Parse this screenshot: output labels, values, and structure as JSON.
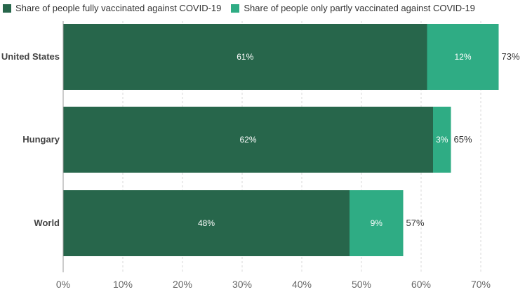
{
  "chart_data": {
    "type": "bar",
    "orientation": "horizontal",
    "stacked": true,
    "categories": [
      "United States",
      "Hungary",
      "World"
    ],
    "series": [
      {
        "name": "Share of people fully vaccinated against COVID-19",
        "values": [
          61,
          62,
          48
        ],
        "labels": [
          "61%",
          "62%",
          "48%"
        ],
        "color": "#27664b"
      },
      {
        "name": "Share of people only partly vaccinated against COVID-19",
        "values": [
          12,
          3,
          9
        ],
        "labels": [
          "12%",
          "3%",
          "9%"
        ],
        "color": "#2fac84"
      }
    ],
    "totals": [
      73,
      65,
      57
    ],
    "total_labels": [
      "73%",
      "65%",
      "57%"
    ],
    "xlim": [
      0,
      73
    ],
    "xticks": [
      0,
      10,
      20,
      30,
      40,
      50,
      60,
      70
    ],
    "xtick_labels": [
      "0%",
      "10%",
      "20%",
      "30%",
      "40%",
      "50%",
      "60%",
      "70%"
    ],
    "grid": "vertical-dashed",
    "legend": "top-left"
  }
}
